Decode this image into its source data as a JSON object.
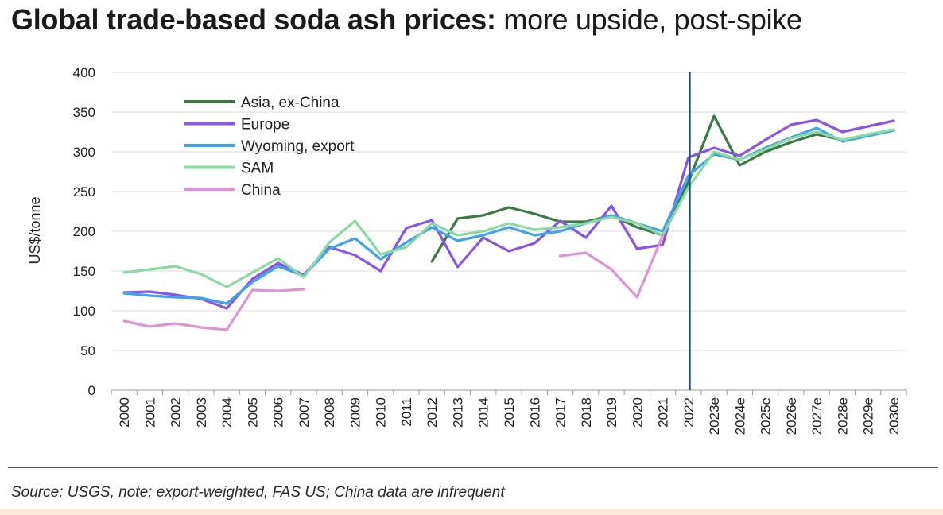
{
  "title": {
    "bold": "Global trade-based soda ash prices:",
    "light": "more upside, post-spike"
  },
  "source": "Source: USGS, note: export-weighted, FAS US; China data are infrequent",
  "chart_data": {
    "type": "line",
    "title": "Global trade-based soda ash prices: more upside, post-spike",
    "xlabel": "",
    "ylabel": "US$/tonne",
    "ylim": [
      0,
      400
    ],
    "yticks": [
      0,
      50,
      100,
      150,
      200,
      250,
      300,
      350,
      400
    ],
    "grid": "horizontal",
    "legend_position": "top-left",
    "vertical_marker": "2022",
    "categories": [
      "2000",
      "2001",
      "2002",
      "2003",
      "2004",
      "2005",
      "2006",
      "2007",
      "2008",
      "2009",
      "2010",
      "2011",
      "2012",
      "2013",
      "2014",
      "2015",
      "2016",
      "2017",
      "2018",
      "2019",
      "2020",
      "2021",
      "2022",
      "2023e",
      "2024e",
      "2025e",
      "2026e",
      "2027e",
      "2028e",
      "2029e",
      "2030e"
    ],
    "series": [
      {
        "name": "Asia, ex-China",
        "color": "#3b7a44",
        "values": [
          null,
          null,
          null,
          null,
          null,
          null,
          null,
          null,
          null,
          null,
          null,
          null,
          162,
          216,
          220,
          230,
          222,
          212,
          212,
          220,
          205,
          195,
          262,
          345,
          283,
          300,
          312,
          322,
          315,
          320,
          327
        ]
      },
      {
        "name": "Europe",
        "color": "#8a55e0",
        "values": [
          123,
          124,
          120,
          115,
          103,
          140,
          160,
          145,
          180,
          170,
          150,
          204,
          214,
          155,
          192,
          175,
          185,
          213,
          192,
          232,
          178,
          183,
          293,
          305,
          295,
          315,
          334,
          340,
          325,
          332,
          339
        ]
      },
      {
        "name": "Wyoming, export",
        "color": "#3fa3e8",
        "values": [
          122,
          119,
          117,
          116,
          109,
          136,
          156,
          144,
          178,
          191,
          165,
          186,
          205,
          188,
          195,
          205,
          195,
          200,
          210,
          220,
          210,
          200,
          270,
          297,
          290,
          305,
          318,
          330,
          313,
          320,
          327
        ]
      },
      {
        "name": "SAM",
        "color": "#8cd9a4",
        "values": [
          148,
          152,
          156,
          146,
          130,
          148,
          166,
          142,
          186,
          213,
          171,
          180,
          210,
          195,
          200,
          210,
          202,
          205,
          210,
          218,
          210,
          195,
          255,
          300,
          290,
          303,
          317,
          325,
          315,
          322,
          328
        ]
      },
      {
        "name": "China",
        "color": "#dc94d4",
        "values": [
          87,
          80,
          84,
          79,
          76,
          126,
          125,
          127,
          null,
          null,
          null,
          null,
          null,
          null,
          null,
          null,
          null,
          169,
          173,
          152,
          117,
          195,
          null,
          null,
          null,
          null,
          null,
          null,
          null,
          null,
          null
        ]
      }
    ]
  }
}
